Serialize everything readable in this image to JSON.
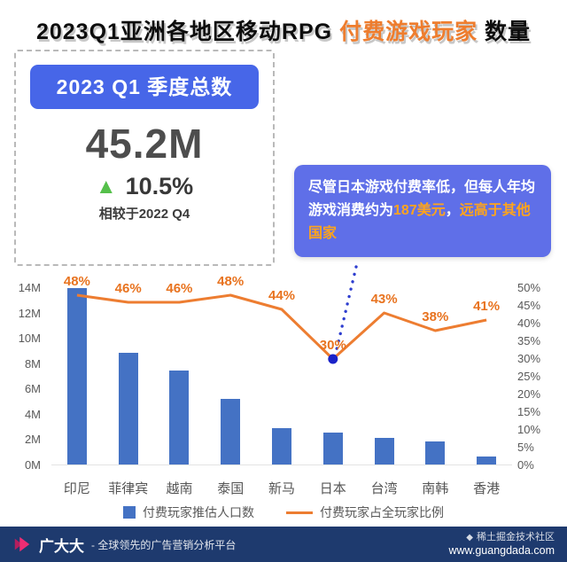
{
  "title": {
    "part1": "2023Q1亚洲各地区移动RPG ",
    "highlight": "付费游戏玩家",
    "part2": " 数量"
  },
  "summary_card": {
    "header": "2023 Q1 季度总数",
    "total": "45.2M",
    "up_icon": "▲",
    "delta": "10.5%",
    "note": "相较于2022 Q4"
  },
  "callout": {
    "seg1": "尽管日本游戏付费率低，但每人年均游戏消费约为",
    "seg2": "187美元",
    "seg3": "，",
    "seg4": "远高于其他国家"
  },
  "chart_data": {
    "type": "bar+line",
    "title": "2023Q1亚洲各地区移动RPG 付费游戏玩家 数量",
    "categories": [
      "印尼",
      "菲律宾",
      "越南",
      "泰国",
      "新马",
      "日本",
      "台湾",
      "南韩",
      "香港"
    ],
    "series": [
      {
        "name": "付费玩家推估人口数",
        "type": "bar",
        "unit": "M",
        "color": "#4472c4",
        "values": [
          13.9,
          8.8,
          7.4,
          5.2,
          2.9,
          2.5,
          2.1,
          1.8,
          0.6
        ]
      },
      {
        "name": "付费玩家占全玩家比例",
        "type": "line",
        "unit": "%",
        "color": "#ed7d31",
        "values": [
          48,
          46,
          46,
          48,
          44,
          30,
          43,
          38,
          41
        ]
      }
    ],
    "left_axis": {
      "min": 0,
      "max": 14,
      "step": 2,
      "suffix": "M"
    },
    "right_axis": {
      "min": 0,
      "max": 50,
      "step": 5,
      "suffix": "%"
    },
    "highlight_point": {
      "category": "日本",
      "index": 5,
      "value": 30
    },
    "legend_position": "bottom",
    "grid": false
  },
  "footer": {
    "brand": "广大大",
    "tagline": "- 全球领先的广告营销分析平台",
    "watermark": "稀土掘金技术社区",
    "watermark_icon": "◆",
    "url": "www.guangdada.com"
  },
  "colors": {
    "bar_blue": "#4472c4",
    "line_orange": "#ed7d31",
    "point_label_orange": "#e8731f",
    "highlight_dot_blue": "#1a22c8",
    "bubble_bg": "#5f6fe8",
    "bubble_highlight": "#ffa41c",
    "card_header_bg": "#4766e8",
    "delta_green": "#55c04b",
    "title_highlight": "#ee7d2e",
    "footer_bg": "#1e3a6e"
  }
}
